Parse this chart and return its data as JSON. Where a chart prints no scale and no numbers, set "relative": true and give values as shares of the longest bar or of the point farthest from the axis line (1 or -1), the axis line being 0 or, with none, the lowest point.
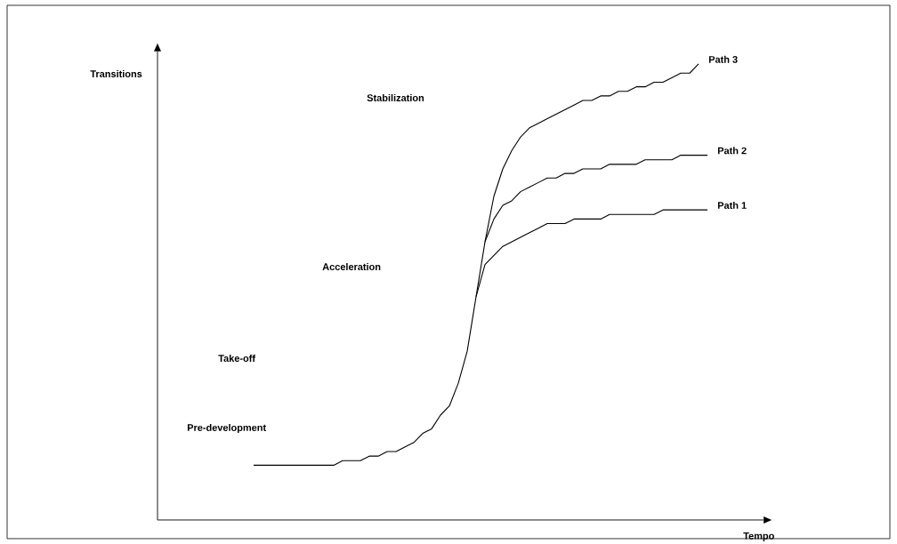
{
  "chart_data": {
    "type": "line",
    "xlabel": "Tempo",
    "ylabel": "Transitions",
    "relative": true,
    "annotations": [
      "Pre-development",
      "Take-off",
      "Acceleration",
      "Stabilization"
    ],
    "categories": [
      null,
      null,
      null,
      null,
      null,
      null,
      null,
      null,
      null,
      null,
      null,
      null,
      null,
      null,
      null,
      null,
      null,
      null,
      null,
      null,
      null,
      null,
      null,
      null,
      null,
      null,
      null,
      null,
      null,
      null,
      null,
      null,
      null,
      null,
      null,
      null,
      null,
      null,
      null,
      null,
      null,
      null,
      null,
      null,
      null,
      null,
      null,
      null,
      null,
      null,
      null,
      null,
      null,
      null,
      null,
      null,
      null,
      null,
      null,
      null,
      null,
      null,
      null,
      null,
      null,
      null,
      null
    ],
    "series": [
      {
        "name": "Path 1",
        "color": "#000000",
        "values": [
          null,
          null,
          null,
          null,
          null,
          null,
          null,
          null,
          null,
          null,
          null,
          null,
          null,
          null,
          null,
          null,
          null,
          null,
          null,
          null,
          null,
          null,
          null,
          null,
          null,
          null,
          null,
          null,
          null,
          null,
          null,
          null,
          null,
          null,
          null,
          0.49,
          0.56,
          0.58,
          0.6,
          0.61,
          0.62,
          0.63,
          0.64,
          0.65,
          0.65,
          0.65,
          0.66,
          0.66,
          0.66,
          0.66,
          0.67,
          0.67,
          0.67,
          0.67,
          0.67,
          0.67,
          0.68,
          0.68,
          0.68,
          0.68,
          0.68,
          0.68,
          null,
          null,
          null,
          null,
          null
        ]
      },
      {
        "name": "Path 2",
        "color": "#000000",
        "values": [
          null,
          null,
          null,
          null,
          null,
          null,
          null,
          null,
          null,
          null,
          null,
          null,
          null,
          null,
          null,
          null,
          null,
          null,
          null,
          null,
          null,
          null,
          null,
          null,
          null,
          null,
          null,
          null,
          null,
          null,
          null,
          null,
          null,
          null,
          null,
          null,
          0.61,
          0.66,
          0.69,
          0.7,
          0.72,
          0.73,
          0.74,
          0.75,
          0.75,
          0.76,
          0.76,
          0.77,
          0.77,
          0.77,
          0.78,
          0.78,
          0.78,
          0.78,
          0.79,
          0.79,
          0.79,
          0.79,
          0.8,
          0.8,
          0.8,
          0.8,
          null,
          null,
          null,
          null,
          null
        ]
      },
      {
        "name": "Path 3",
        "color": "#000000",
        "values": [
          null,
          null,
          null,
          null,
          null,
          null,
          null,
          null,
          null,
          null,
          0.12,
          0.12,
          0.12,
          0.12,
          0.12,
          0.12,
          0.12,
          0.12,
          0.12,
          0.12,
          0.13,
          0.13,
          0.13,
          0.14,
          0.14,
          0.15,
          0.15,
          0.16,
          0.17,
          0.19,
          0.2,
          0.23,
          0.25,
          0.3,
          0.37,
          0.49,
          0.61,
          0.71,
          0.77,
          0.81,
          0.84,
          0.86,
          0.87,
          0.88,
          0.89,
          0.9,
          0.91,
          0.92,
          0.92,
          0.93,
          0.93,
          0.94,
          0.94,
          0.95,
          0.95,
          0.96,
          0.96,
          0.97,
          0.98,
          0.98,
          1,
          null,
          null,
          null,
          null,
          null,
          null
        ]
      }
    ]
  }
}
